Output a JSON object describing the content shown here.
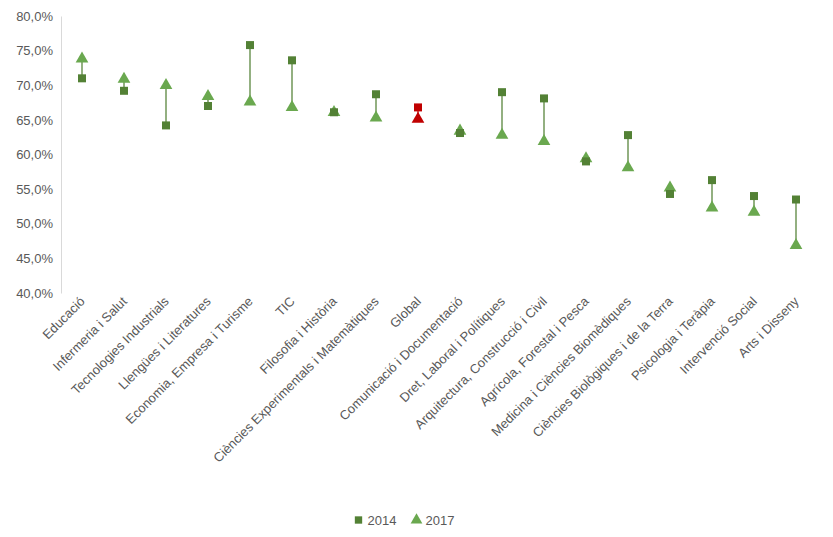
{
  "chart_data": {
    "type": "dumbbell",
    "categories": [
      "Educació",
      "Infermeria i Salut",
      "Tecnologies Industrials",
      "Llengües i Literatures",
      "Economia, Empresa i Turisme",
      "TIC",
      "Filosofia i Història",
      "Ciències Experimentals i Matemàtiques",
      "Global",
      "Comunicació i Documentació",
      "Dret, Laboral i Polítiques",
      "Arquitectura, Construcció i Civil",
      "Agrícola, Forestal i Pesca",
      "Medicina i Ciències Biomèdiques",
      "Ciències Biològiques i de la Terra",
      "Psicologia i Teràpia",
      "Intervenció Social",
      "Arts i Disseny"
    ],
    "series": [
      {
        "name": "2014",
        "color": "#538135",
        "marker": "square",
        "values": [
          71.0,
          69.2,
          64.2,
          67.0,
          75.8,
          73.6,
          66.1,
          68.7,
          66.8,
          63.1,
          69.0,
          68.1,
          59.0,
          62.8,
          54.3,
          56.3,
          54.0,
          53.5
        ],
        "colors": [
          "#538135",
          "#538135",
          "#538135",
          "#538135",
          "#538135",
          "#538135",
          "#538135",
          "#538135",
          "#c00000",
          "#538135",
          "#538135",
          "#538135",
          "#538135",
          "#538135",
          "#538135",
          "#538135",
          "#538135",
          "#538135"
        ]
      },
      {
        "name": "2017",
        "color": "#6aa84f",
        "marker": "triangle",
        "values": [
          73.8,
          70.9,
          70.0,
          68.4,
          67.6,
          66.8,
          66.1,
          65.3,
          65.1,
          63.4,
          62.8,
          61.9,
          59.4,
          58.1,
          55.2,
          52.3,
          51.7,
          46.9
        ],
        "colors": [
          "#6aa84f",
          "#6aa84f",
          "#6aa84f",
          "#6aa84f",
          "#6aa84f",
          "#6aa84f",
          "#6aa84f",
          "#6aa84f",
          "#c00000",
          "#6aa84f",
          "#6aa84f",
          "#6aa84f",
          "#6aa84f",
          "#6aa84f",
          "#6aa84f",
          "#6aa84f",
          "#6aa84f",
          "#6aa84f"
        ]
      }
    ],
    "ylim": [
      40,
      80
    ],
    "yticks": [
      {
        "value": 40,
        "label": "40,0%"
      },
      {
        "value": 45,
        "label": "45,0%"
      },
      {
        "value": 50,
        "label": "50,0%"
      },
      {
        "value": 55,
        "label": "55,0%"
      },
      {
        "value": 60,
        "label": "60,0%"
      },
      {
        "value": 65,
        "label": "65,0%"
      },
      {
        "value": 70,
        "label": "70,0%"
      },
      {
        "value": 75,
        "label": "75,0%"
      },
      {
        "value": 80,
        "label": "80,0%"
      }
    ],
    "grid": false,
    "legend": "bottom"
  }
}
